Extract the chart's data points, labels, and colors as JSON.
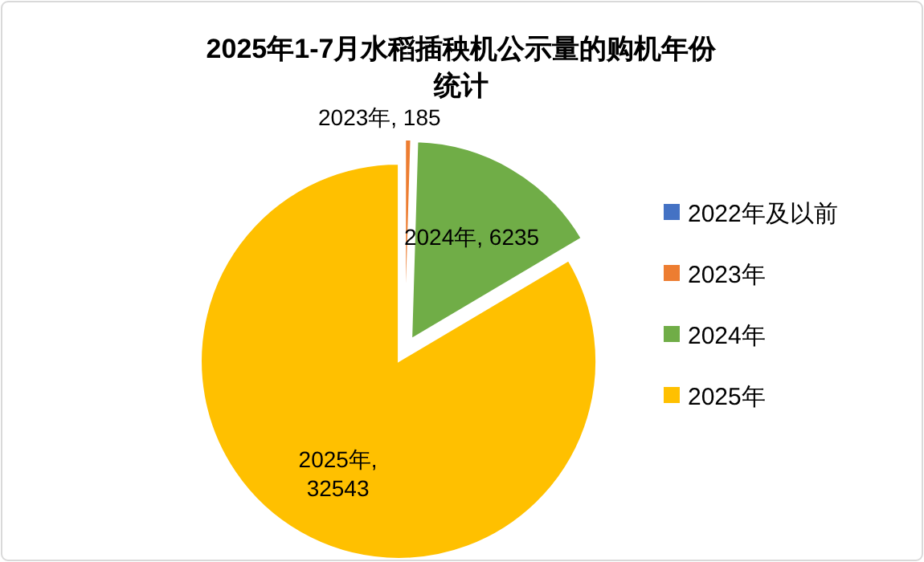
{
  "chart_data": {
    "type": "pie",
    "title": "2025年1-7月水稻插秧机公示量的购机年份统计",
    "categories": [
      "2022年及以前",
      "2023年",
      "2024年",
      "2025年"
    ],
    "values": [
      0,
      185,
      6235,
      32543
    ],
    "colors": [
      "#4472c4",
      "#ed7d31",
      "#70ad47",
      "#ffc000"
    ],
    "value_labels": [
      null,
      "2023年, 185",
      "2024年, 6235",
      "2025年, 32543"
    ],
    "legend": "right"
  }
}
